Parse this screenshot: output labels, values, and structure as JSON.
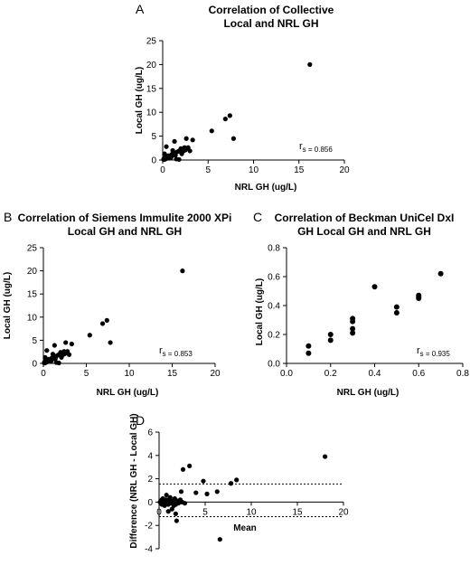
{
  "chart_data": [
    {
      "panel": "A",
      "type": "scatter",
      "title": [
        "Correlation of Collective",
        "Local and NRL GH"
      ],
      "xlabel": "NRL GH (ug/L)",
      "ylabel": "Local GH (ug/L)",
      "xlim": [
        0,
        20
      ],
      "ylim": [
        0,
        25
      ],
      "xticks": [
        "0",
        "5",
        "10",
        "15",
        "20"
      ],
      "yticks": [
        "0",
        "5",
        "10",
        "15",
        "20",
        "25"
      ],
      "annotation": {
        "r": "r",
        "sub": "s = 0.856"
      },
      "points": [
        [
          0.1,
          0.1
        ],
        [
          0.1,
          0.2
        ],
        [
          0.2,
          0.1
        ],
        [
          0.2,
          0.3
        ],
        [
          0.3,
          0.2
        ],
        [
          0.3,
          0.3
        ],
        [
          0.3,
          0.6
        ],
        [
          0.4,
          0.3
        ],
        [
          0.5,
          0.4
        ],
        [
          0.5,
          0.5
        ],
        [
          0.6,
          0.5
        ],
        [
          0.6,
          0.9
        ],
        [
          0.2,
          1.3
        ],
        [
          0.4,
          2.8
        ],
        [
          0.7,
          0.7
        ],
        [
          0.8,
          0.9
        ],
        [
          0.9,
          0.5
        ],
        [
          1.0,
          0.8
        ],
        [
          1.0,
          1.2
        ],
        [
          1.1,
          2.0
        ],
        [
          1.2,
          1.3
        ],
        [
          1.3,
          3.9
        ],
        [
          1.4,
          1.0
        ],
        [
          1.5,
          1.6
        ],
        [
          1.5,
          0.2
        ],
        [
          1.7,
          1.8
        ],
        [
          1.8,
          0.1
        ],
        [
          1.9,
          2.0
        ],
        [
          2.0,
          1.8
        ],
        [
          2.0,
          2.4
        ],
        [
          2.1,
          1.3
        ],
        [
          2.3,
          1.9
        ],
        [
          2.4,
          2.6
        ],
        [
          2.5,
          2.1
        ],
        [
          2.6,
          4.5
        ],
        [
          2.8,
          2.6
        ],
        [
          3.0,
          1.9
        ],
        [
          3.3,
          4.2
        ],
        [
          5.4,
          6.1
        ],
        [
          6.9,
          8.6
        ],
        [
          7.4,
          9.3
        ],
        [
          7.8,
          4.5
        ],
        [
          16.2,
          20.0
        ]
      ]
    },
    {
      "panel": "B",
      "type": "scatter",
      "title": [
        "Correlation of Siemens Immulite 2000 XPi",
        "Local GH and NRL GH"
      ],
      "xlabel": "NRL GH (ug/L)",
      "ylabel": "Local GH (ug/L)",
      "xlim": [
        0,
        20
      ],
      "ylim": [
        0,
        25
      ],
      "xticks": [
        "0",
        "5",
        "10",
        "15",
        "20"
      ],
      "yticks": [
        "0",
        "5",
        "10",
        "15",
        "20",
        "25"
      ],
      "annotation": {
        "r": "r",
        "sub": "s = 0.853"
      },
      "points": [
        [
          0.1,
          0.1
        ],
        [
          0.1,
          0.2
        ],
        [
          0.2,
          0.1
        ],
        [
          0.2,
          0.3
        ],
        [
          0.3,
          0.2
        ],
        [
          0.3,
          0.3
        ],
        [
          0.3,
          0.6
        ],
        [
          0.4,
          0.3
        ],
        [
          0.5,
          0.4
        ],
        [
          0.5,
          0.5
        ],
        [
          0.6,
          0.5
        ],
        [
          0.6,
          0.9
        ],
        [
          0.2,
          1.3
        ],
        [
          0.4,
          2.8
        ],
        [
          0.7,
          0.7
        ],
        [
          0.8,
          0.9
        ],
        [
          0.9,
          0.5
        ],
        [
          1.0,
          0.8
        ],
        [
          1.0,
          1.2
        ],
        [
          1.1,
          2.0
        ],
        [
          1.2,
          1.3
        ],
        [
          1.3,
          3.9
        ],
        [
          1.4,
          1.0
        ],
        [
          1.5,
          1.6
        ],
        [
          1.5,
          0.2
        ],
        [
          1.7,
          1.8
        ],
        [
          1.8,
          0.1
        ],
        [
          1.9,
          2.0
        ],
        [
          2.0,
          1.8
        ],
        [
          2.0,
          2.4
        ],
        [
          2.1,
          1.3
        ],
        [
          2.3,
          1.9
        ],
        [
          2.4,
          2.6
        ],
        [
          2.5,
          2.1
        ],
        [
          2.6,
          4.5
        ],
        [
          2.8,
          2.6
        ],
        [
          3.0,
          1.9
        ],
        [
          3.3,
          4.2
        ],
        [
          5.4,
          6.1
        ],
        [
          6.9,
          8.6
        ],
        [
          7.4,
          9.3
        ],
        [
          7.8,
          4.5
        ],
        [
          16.2,
          20.0
        ]
      ]
    },
    {
      "panel": "C",
      "type": "scatter",
      "title": [
        "Correlation of Beckman UniCel DxI",
        "GH Local GH and NRL GH"
      ],
      "xlabel": "NRL GH (ug/L)",
      "ylabel": "Local GH (ug/L)",
      "xlim": [
        0,
        0.8
      ],
      "ylim": [
        0,
        0.8
      ],
      "xticks": [
        "0.0",
        "0.2",
        "0.4",
        "0.6",
        "0.8"
      ],
      "yticks": [
        "0.0",
        "0.2",
        "0.4",
        "0.6",
        "0.8"
      ],
      "annotation": {
        "r": "r",
        "sub": "s = 0.935"
      },
      "points": [
        [
          0.1,
          0.07
        ],
        [
          0.1,
          0.12
        ],
        [
          0.2,
          0.16
        ],
        [
          0.2,
          0.2
        ],
        [
          0.3,
          0.21
        ],
        [
          0.3,
          0.24
        ],
        [
          0.3,
          0.29
        ],
        [
          0.3,
          0.31
        ],
        [
          0.4,
          0.53
        ],
        [
          0.5,
          0.35
        ],
        [
          0.5,
          0.39
        ],
        [
          0.6,
          0.45
        ],
        [
          0.6,
          0.46
        ],
        [
          0.6,
          0.47
        ],
        [
          0.7,
          0.62
        ]
      ]
    },
    {
      "panel": "D",
      "type": "scatter",
      "title": [],
      "xlabel": "Mean",
      "ylabel": "Difference (NRL GH - Local GH)",
      "xlim": [
        0,
        20
      ],
      "ylim": [
        -4,
        6
      ],
      "xticks": [
        "0",
        "5",
        "10",
        "15",
        "20"
      ],
      "yticks": [
        "-4",
        "-2",
        "0",
        "2",
        "4",
        "6"
      ],
      "reference_lines": [
        1.55,
        -1.25
      ],
      "points": [
        [
          0.1,
          0.0
        ],
        [
          0.2,
          0.1
        ],
        [
          0.2,
          -0.1
        ],
        [
          0.3,
          0.2
        ],
        [
          0.3,
          -0.2
        ],
        [
          0.4,
          0.0
        ],
        [
          0.4,
          0.3
        ],
        [
          0.5,
          -0.1
        ],
        [
          0.5,
          0.1
        ],
        [
          0.6,
          0.0
        ],
        [
          0.6,
          -0.3
        ],
        [
          0.7,
          0.2
        ],
        [
          0.8,
          -0.1
        ],
        [
          0.8,
          0.1
        ],
        [
          0.9,
          0.0
        ],
        [
          1.0,
          0.2
        ],
        [
          1.0,
          -0.2
        ],
        [
          1.1,
          0.0
        ],
        [
          1.2,
          0.4
        ],
        [
          1.3,
          -0.1
        ],
        [
          1.4,
          0.1
        ],
        [
          1.5,
          0.0
        ],
        [
          1.6,
          -0.3
        ],
        [
          1.7,
          0.3
        ],
        [
          1.8,
          -0.2
        ],
        [
          2.0,
          0.1
        ],
        [
          2.1,
          -0.1
        ],
        [
          2.3,
          0.2
        ],
        [
          2.5,
          0.0
        ],
        [
          2.8,
          -0.1
        ],
        [
          0.8,
          0.6
        ],
        [
          1.0,
          -0.8
        ],
        [
          1.4,
          -0.6
        ],
        [
          1.8,
          -1.0
        ],
        [
          1.9,
          -1.6
        ],
        [
          2.4,
          0.9
        ],
        [
          2.6,
          2.8
        ],
        [
          3.3,
          3.1
        ],
        [
          4.0,
          0.8
        ],
        [
          4.8,
          1.8
        ],
        [
          5.2,
          0.7
        ],
        [
          6.3,
          0.9
        ],
        [
          6.6,
          -3.2
        ],
        [
          7.8,
          1.6
        ],
        [
          8.4,
          1.9
        ],
        [
          18.0,
          3.9
        ]
      ]
    }
  ]
}
